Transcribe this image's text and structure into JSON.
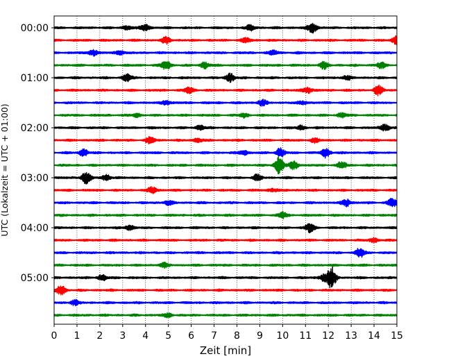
{
  "chart_data": {
    "type": "line",
    "title": "",
    "xlabel": "Zeit  [min]",
    "ylabel": "UTC (Lokalzeit = UTC + 01:00)",
    "xlim": [
      0,
      15
    ],
    "x_ticks": [
      0,
      1,
      2,
      3,
      4,
      5,
      6,
      7,
      8,
      9,
      10,
      11,
      12,
      13,
      14,
      15
    ],
    "y_ticks": [
      "00:00",
      "01:00",
      "02:00",
      "03:00",
      "04:00",
      "05:00"
    ],
    "grid": "x-dotted",
    "colors": [
      "#000000",
      "#ff0000",
      "#0000ff",
      "#008000"
    ],
    "trace_rows": [
      {
        "start": "00:00",
        "color": "#000000",
        "events": [
          [
            3.2,
            0.6
          ],
          [
            4.0,
            0.9
          ],
          [
            8.6,
            0.8
          ],
          [
            11.3,
            1.5
          ]
        ]
      },
      {
        "start": "00:15",
        "color": "#ff0000",
        "events": [
          [
            4.9,
            0.9
          ],
          [
            8.4,
            0.6
          ],
          [
            15.0,
            1.2
          ]
        ]
      },
      {
        "start": "00:30",
        "color": "#0000ff",
        "events": [
          [
            1.7,
            0.9
          ],
          [
            2.9,
            0.6
          ],
          [
            9.6,
            0.6
          ]
        ]
      },
      {
        "start": "00:45",
        "color": "#008000",
        "events": [
          [
            4.9,
            1.3
          ],
          [
            6.6,
            0.9
          ],
          [
            11.8,
            0.9
          ],
          [
            14.3,
            0.8
          ]
        ]
      },
      {
        "start": "01:00",
        "color": "#000000",
        "events": [
          [
            3.2,
            1.1
          ],
          [
            7.7,
            1.2
          ],
          [
            12.8,
            0.6
          ]
        ]
      },
      {
        "start": "01:15",
        "color": "#ff0000",
        "events": [
          [
            5.9,
            0.8
          ],
          [
            11.1,
            0.9
          ],
          [
            14.2,
            1.3
          ]
        ]
      },
      {
        "start": "01:30",
        "color": "#0000ff",
        "events": [
          [
            4.9,
            0.6
          ],
          [
            9.1,
            0.8
          ],
          [
            10.9,
            0.5
          ]
        ]
      },
      {
        "start": "01:45",
        "color": "#008000",
        "events": [
          [
            3.6,
            0.5
          ],
          [
            8.3,
            0.6
          ],
          [
            12.6,
            0.6
          ]
        ]
      },
      {
        "start": "02:00",
        "color": "#000000",
        "events": [
          [
            6.4,
            0.6
          ],
          [
            10.8,
            0.6
          ],
          [
            14.5,
            1.0
          ]
        ]
      },
      {
        "start": "02:15",
        "color": "#ff0000",
        "events": [
          [
            4.2,
            0.9
          ],
          [
            6.3,
            0.6
          ],
          [
            11.4,
            0.6
          ]
        ]
      },
      {
        "start": "02:30",
        "color": "#0000ff",
        "events": [
          [
            1.3,
            1.0
          ],
          [
            8.3,
            0.6
          ],
          [
            9.9,
            1.3
          ],
          [
            11.9,
            1.3
          ]
        ]
      },
      {
        "start": "02:45",
        "color": "#008000",
        "events": [
          [
            9.85,
            2.5
          ],
          [
            10.5,
            1.1
          ],
          [
            12.6,
            1.0
          ]
        ]
      },
      {
        "start": "03:00",
        "color": "#000000",
        "events": [
          [
            1.4,
            1.8
          ],
          [
            2.3,
            0.8
          ],
          [
            8.9,
            0.9
          ]
        ]
      },
      {
        "start": "03:15",
        "color": "#ff0000",
        "events": [
          [
            4.3,
            0.9
          ],
          [
            9.6,
            0.5
          ]
        ]
      },
      {
        "start": "03:30",
        "color": "#0000ff",
        "events": [
          [
            5.0,
            0.6
          ],
          [
            12.8,
            1.0
          ],
          [
            14.8,
            1.2
          ]
        ]
      },
      {
        "start": "03:45",
        "color": "#008000",
        "events": [
          [
            10.0,
            0.9
          ]
        ]
      },
      {
        "start": "04:00",
        "color": "#000000",
        "events": [
          [
            3.3,
            0.7
          ],
          [
            11.2,
            1.3
          ]
        ]
      },
      {
        "start": "04:15",
        "color": "#ff0000",
        "events": [
          [
            14.0,
            0.6
          ]
        ]
      },
      {
        "start": "04:30",
        "color": "#0000ff",
        "events": [
          [
            13.4,
            1.5
          ]
        ]
      },
      {
        "start": "04:45",
        "color": "#008000",
        "events": [
          [
            4.8,
            0.6
          ]
        ]
      },
      {
        "start": "05:00",
        "color": "#000000",
        "events": [
          [
            2.1,
            0.8
          ],
          [
            11.8,
            0.9
          ],
          [
            12.15,
            3.0
          ]
        ]
      },
      {
        "start": "05:15",
        "color": "#ff0000",
        "events": [
          [
            0.3,
            1.4
          ]
        ]
      },
      {
        "start": "05:30",
        "color": "#0000ff",
        "events": [
          [
            0.9,
            0.7
          ]
        ]
      },
      {
        "start": "05:45",
        "color": "#008000",
        "events": [
          [
            5.0,
            0.5
          ]
        ]
      }
    ]
  }
}
